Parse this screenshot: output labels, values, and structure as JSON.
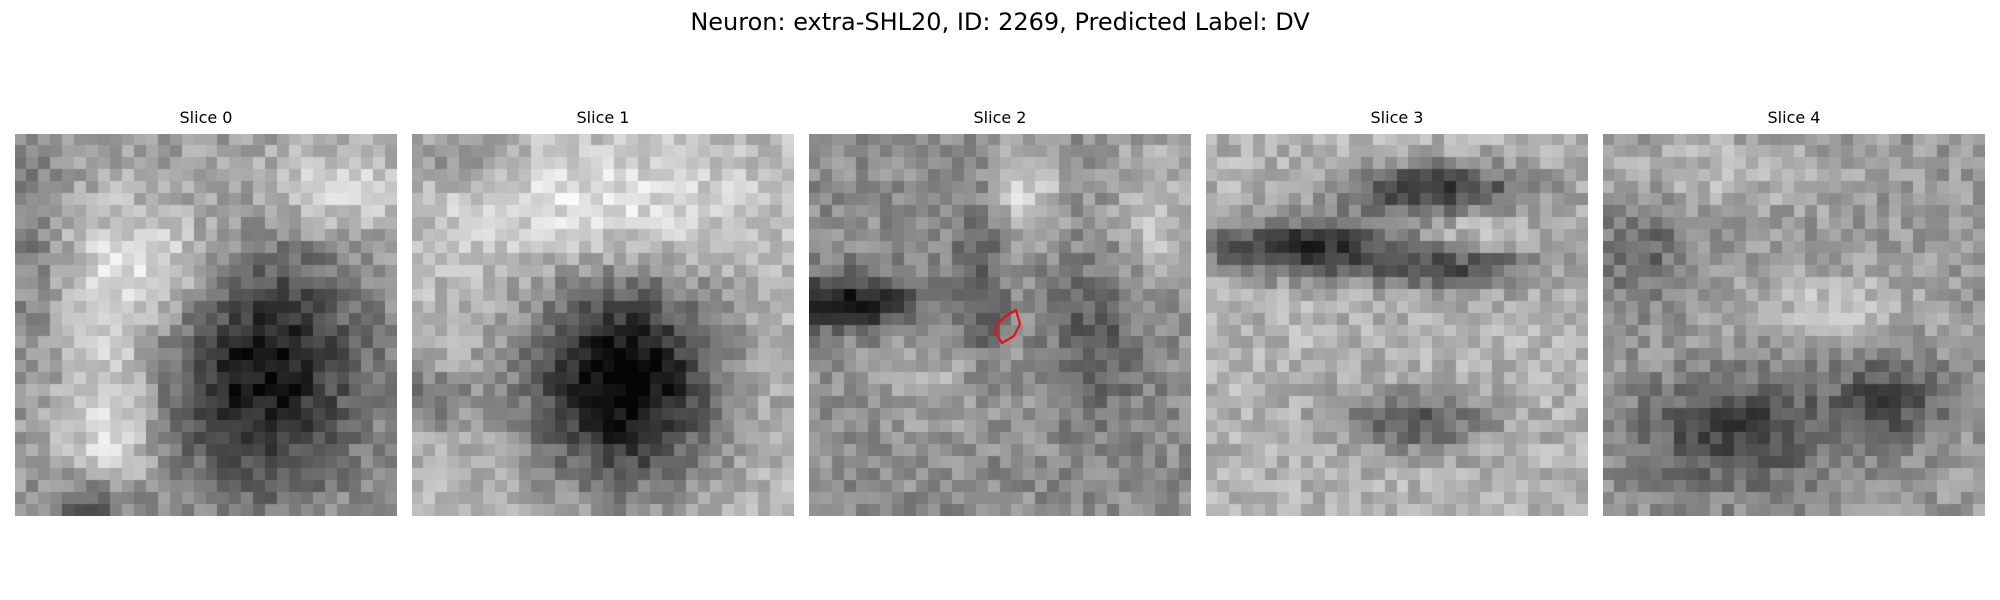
{
  "figure": {
    "title": "Neuron: extra-SHL20, ID: 2269, Predicted Label: DV"
  },
  "panels": [
    {
      "title": "Slice 0"
    },
    {
      "title": "Slice 1"
    },
    {
      "title": "Slice 2"
    },
    {
      "title": "Slice 3"
    },
    {
      "title": "Slice 4"
    }
  ],
  "colors": {
    "background": "#ffffff",
    "outline": "#e0121a"
  }
}
